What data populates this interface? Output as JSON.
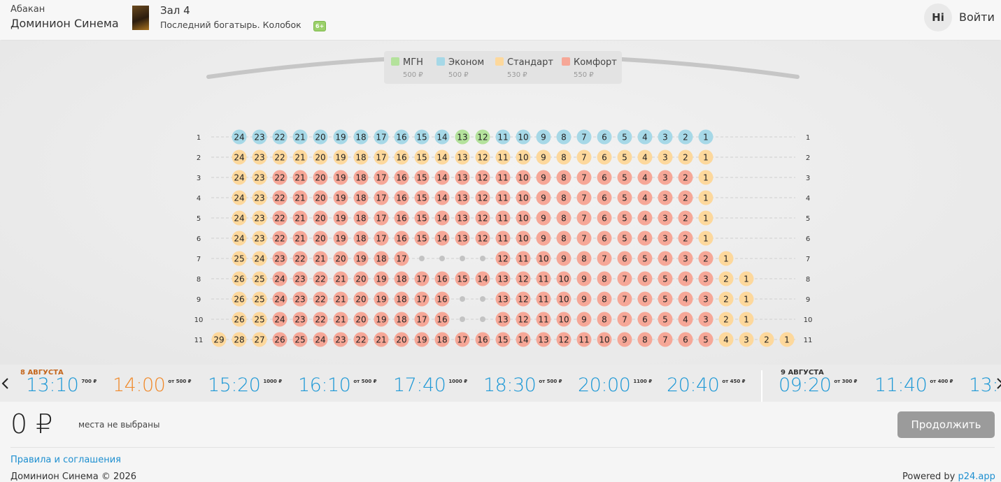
{
  "header": {
    "city": "Абакан",
    "cinema": "Доминион Синема",
    "hall": "Зал 4",
    "movie": "Последний богатырь. Колобок",
    "age": "6+",
    "avatar": "Hi",
    "login": "Войти"
  },
  "legend": [
    {
      "name": "МГН",
      "price": "500 ₽",
      "color": "#b4e29c"
    },
    {
      "name": "Эконом",
      "price": "500 ₽",
      "color": "#a6d8e7"
    },
    {
      "name": "Стандарт",
      "price": "530 ₽",
      "color": "#fdd89c"
    },
    {
      "name": "Комфорт",
      "price": "550 ₽",
      "color": "#f6a797"
    }
  ],
  "rows": [
    {
      "label": "1",
      "seats": [
        "24",
        "23",
        "22",
        "21",
        "20",
        "19",
        "18",
        "17",
        "16",
        "15",
        "14",
        "13",
        "12",
        "11",
        "10",
        "9",
        "8",
        "7",
        "6",
        "5",
        "4",
        "3",
        "2",
        "1"
      ],
      "types": [
        1,
        1,
        1,
        1,
        1,
        1,
        1,
        1,
        1,
        1,
        1,
        0,
        0,
        1,
        1,
        1,
        1,
        1,
        1,
        1,
        1,
        1,
        1,
        1
      ]
    },
    {
      "label": "2",
      "seats": [
        "24",
        "23",
        "22",
        "21",
        "20",
        "19",
        "18",
        "17",
        "16",
        "15",
        "14",
        "13",
        "12",
        "11",
        "10",
        "9",
        "8",
        "7",
        "6",
        "5",
        "4",
        "3",
        "2",
        "1"
      ],
      "types": [
        2,
        2,
        2,
        2,
        2,
        2,
        2,
        2,
        2,
        2,
        2,
        2,
        2,
        2,
        2,
        2,
        2,
        2,
        2,
        2,
        2,
        2,
        2,
        2
      ]
    },
    {
      "label": "3",
      "seats": [
        "24",
        "23",
        "22",
        "21",
        "20",
        "19",
        "18",
        "17",
        "16",
        "15",
        "14",
        "13",
        "12",
        "11",
        "10",
        "9",
        "8",
        "7",
        "6",
        "5",
        "4",
        "3",
        "2",
        "1"
      ],
      "types": [
        2,
        2,
        3,
        3,
        3,
        3,
        3,
        3,
        3,
        3,
        3,
        3,
        3,
        3,
        3,
        3,
        3,
        3,
        3,
        3,
        3,
        3,
        3,
        2
      ]
    },
    {
      "label": "4",
      "seats": [
        "24",
        "23",
        "22",
        "21",
        "20",
        "19",
        "18",
        "17",
        "16",
        "15",
        "14",
        "13",
        "12",
        "11",
        "10",
        "9",
        "8",
        "7",
        "6",
        "5",
        "4",
        "3",
        "2",
        "1"
      ],
      "types": [
        2,
        2,
        3,
        3,
        3,
        3,
        3,
        3,
        3,
        3,
        3,
        3,
        3,
        3,
        3,
        3,
        3,
        3,
        3,
        3,
        3,
        3,
        3,
        2
      ]
    },
    {
      "label": "5",
      "seats": [
        "24",
        "23",
        "22",
        "21",
        "20",
        "19",
        "18",
        "17",
        "16",
        "15",
        "14",
        "13",
        "12",
        "11",
        "10",
        "9",
        "8",
        "7",
        "6",
        "5",
        "4",
        "3",
        "2",
        "1"
      ],
      "types": [
        2,
        2,
        3,
        3,
        3,
        3,
        3,
        3,
        3,
        3,
        3,
        3,
        3,
        3,
        3,
        3,
        3,
        3,
        3,
        3,
        3,
        3,
        3,
        2
      ]
    },
    {
      "label": "6",
      "seats": [
        "24",
        "23",
        "22",
        "21",
        "20",
        "19",
        "18",
        "17",
        "16",
        "15",
        "14",
        "13",
        "12",
        "11",
        "10",
        "9",
        "8",
        "7",
        "6",
        "5",
        "4",
        "3",
        "2",
        "1"
      ],
      "types": [
        2,
        2,
        3,
        3,
        3,
        3,
        3,
        3,
        3,
        3,
        3,
        3,
        3,
        3,
        3,
        3,
        3,
        3,
        3,
        3,
        3,
        3,
        3,
        2
      ]
    },
    {
      "label": "7",
      "seats": [
        "25",
        "24",
        "23",
        "22",
        "21",
        "20",
        "19",
        "18",
        "17",
        null,
        null,
        null,
        null,
        "12",
        "11",
        "10",
        "9",
        "8",
        "7",
        "6",
        "5",
        "4",
        "3",
        "2",
        "1"
      ],
      "types": [
        2,
        2,
        3,
        3,
        3,
        3,
        3,
        3,
        3,
        null,
        null,
        null,
        null,
        3,
        3,
        3,
        3,
        3,
        3,
        3,
        3,
        3,
        3,
        3,
        2
      ]
    },
    {
      "label": "8",
      "seats": [
        "26",
        "25",
        "24",
        "23",
        "22",
        "21",
        "20",
        "19",
        "18",
        "17",
        "16",
        "15",
        "14",
        "13",
        "12",
        "11",
        "10",
        "9",
        "8",
        "7",
        "6",
        "5",
        "4",
        "3",
        "2",
        "1"
      ],
      "types": [
        2,
        2,
        3,
        3,
        3,
        3,
        3,
        3,
        3,
        3,
        3,
        3,
        3,
        3,
        3,
        3,
        3,
        3,
        3,
        3,
        3,
        3,
        3,
        3,
        2,
        2
      ]
    },
    {
      "label": "9",
      "seats": [
        "26",
        "25",
        "24",
        "23",
        "22",
        "21",
        "20",
        "19",
        "18",
        "17",
        "16",
        null,
        null,
        "13",
        "12",
        "11",
        "10",
        "9",
        "8",
        "7",
        "6",
        "5",
        "4",
        "3",
        "2",
        "1"
      ],
      "types": [
        2,
        2,
        3,
        3,
        3,
        3,
        3,
        3,
        3,
        3,
        3,
        null,
        null,
        3,
        3,
        3,
        3,
        3,
        3,
        3,
        3,
        3,
        3,
        3,
        2,
        2
      ]
    },
    {
      "label": "10",
      "seats": [
        "26",
        "25",
        "24",
        "23",
        "22",
        "21",
        "20",
        "19",
        "18",
        "17",
        "16",
        null,
        null,
        "13",
        "12",
        "11",
        "10",
        "9",
        "8",
        "7",
        "6",
        "5",
        "4",
        "3",
        "2",
        "1"
      ],
      "types": [
        2,
        2,
        3,
        3,
        3,
        3,
        3,
        3,
        3,
        3,
        3,
        null,
        null,
        3,
        3,
        3,
        3,
        3,
        3,
        3,
        3,
        3,
        3,
        3,
        2,
        2
      ]
    },
    {
      "label": "11",
      "seats": [
        "29",
        "28",
        "27",
        "26",
        "25",
        "24",
        "23",
        "22",
        "21",
        "20",
        "19",
        "18",
        "17",
        "16",
        "15",
        "14",
        "13",
        "12",
        "11",
        "10",
        "9",
        "8",
        "7",
        "6",
        "5",
        "4",
        "3",
        "2",
        "1"
      ],
      "types": [
        2,
        2,
        2,
        3,
        3,
        3,
        3,
        3,
        3,
        3,
        3,
        3,
        3,
        3,
        3,
        3,
        3,
        3,
        3,
        3,
        3,
        3,
        3,
        3,
        3,
        2,
        2,
        2,
        2
      ]
    }
  ],
  "schedule": [
    {
      "date": "8 АВГУСТА",
      "sessions": [
        {
          "time": "13:10",
          "price": "700 ₽"
        },
        {
          "time": "14:00",
          "price": "от 500 ₽",
          "selected": true
        },
        {
          "time": "15:20",
          "price": "1000 ₽"
        },
        {
          "time": "16:10",
          "price": "от 500 ₽"
        },
        {
          "time": "17:40",
          "price": "1000 ₽"
        },
        {
          "time": "18:30",
          "price": "от 500 ₽"
        },
        {
          "time": "20:00",
          "price": "1100 ₽"
        },
        {
          "time": "20:40",
          "price": "от 450 ₽"
        }
      ]
    },
    {
      "date": "9 АВГУСТА",
      "sessions": [
        {
          "time": "09:20",
          "price": "от 300 ₽"
        },
        {
          "time": "11:40",
          "price": "от 400 ₽"
        },
        {
          "time": "13:",
          "price": ""
        }
      ]
    }
  ],
  "summary": {
    "total": "0 ₽",
    "status": "места не выбраны",
    "button": "Продолжить"
  },
  "footer": {
    "rules": "Правила и соглашения",
    "copyright": "Доминион Синема © 2026",
    "powered": "Powered by",
    "link": "p24.app"
  }
}
